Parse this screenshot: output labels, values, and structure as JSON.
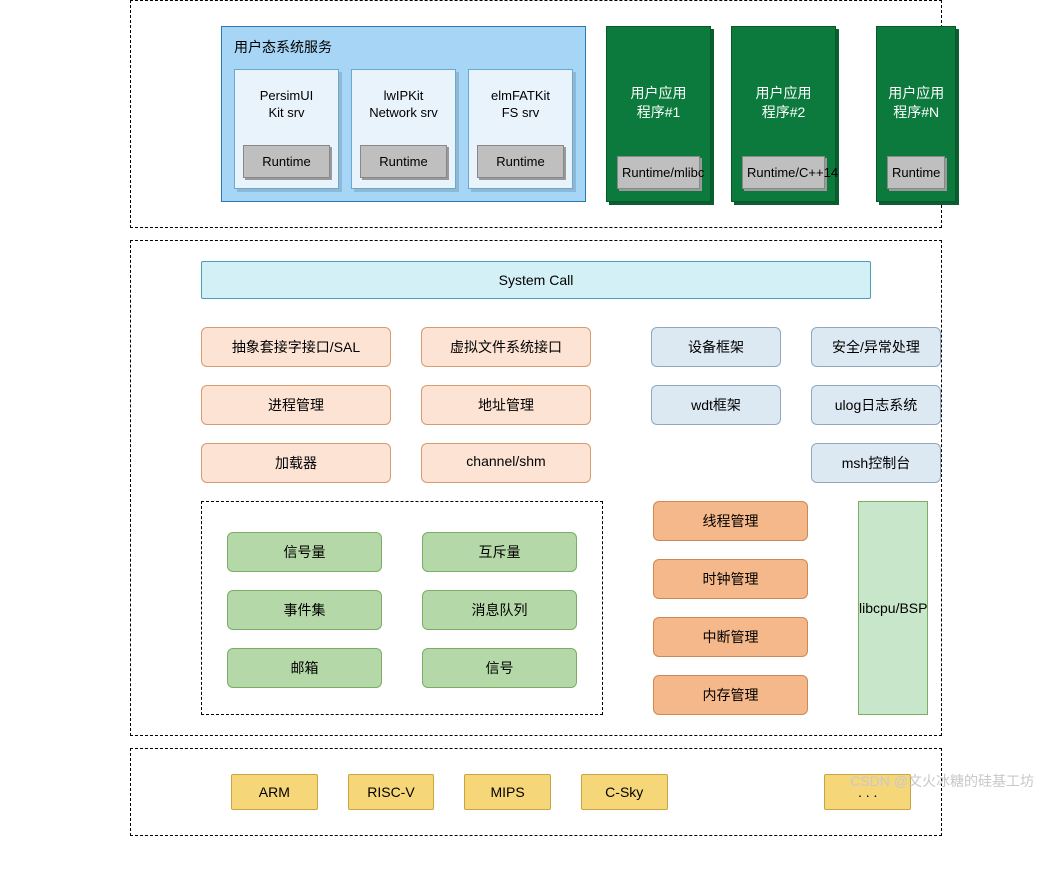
{
  "user_layer": {
    "services_title": "用户态系统服务",
    "services": [
      {
        "line1": "PersimUI",
        "line2": "Kit srv",
        "runtime": "Runtime"
      },
      {
        "line1": "lwIPKit",
        "line2": "Network srv",
        "runtime": "Runtime"
      },
      {
        "line1": "elmFATKit",
        "line2": "FS srv",
        "runtime": "Runtime"
      }
    ],
    "apps": [
      {
        "line1": "用户应用",
        "line2": "程序#1",
        "runtime": "Runtime/mlibc"
      },
      {
        "line1": "用户应用",
        "line2": "程序#2",
        "runtime": "Runtime/C++14"
      },
      {
        "line1": "用户应用",
        "line2": "程序#N",
        "runtime": "Runtime"
      }
    ]
  },
  "kernel_layer": {
    "syscall": "System Call",
    "row1": {
      "a": "抽象套接字接口/SAL",
      "b": "虚拟文件系统接口",
      "c": "设备框架",
      "d": "安全/异常处理"
    },
    "row2": {
      "a": "进程管理",
      "b": "地址管理",
      "c": "wdt框架",
      "d": "ulog日志系统"
    },
    "row3": {
      "a": "加载器",
      "b": "channel/shm",
      "d": "msh控制台"
    },
    "ipc": {
      "sem": "信号量",
      "mutex": "互斥量",
      "event": "事件集",
      "mq": "消息队列",
      "mailbox": "邮箱",
      "signal": "信号"
    },
    "sched": {
      "thread": "线程管理",
      "clock": "时钟管理",
      "irq": "中断管理",
      "mem": "内存管理"
    },
    "libcpu": "libcpu/BSP"
  },
  "arch_layer": {
    "arm": "ARM",
    "riscv": "RISC-V",
    "mips": "MIPS",
    "csky": "C-Sky",
    "more": ". . ."
  },
  "watermark": "CSDN @文火冰糖的硅基工坊",
  "colors": {
    "user_services_bg": "#a6d5f5",
    "srv_box_bg": "#e8f3fb",
    "runtime_bg": "#bfbfbf",
    "app_bg": "#0b7a3c",
    "syscall_bg": "#d4f0f7",
    "peach_bg": "#fce3d4",
    "lblue_bg": "#dce8f2",
    "green_bg": "#b5d8a8",
    "orange_bg": "#f5b88a",
    "libcpu_bg": "#c8e6c9",
    "yellow_bg": "#f5d77a"
  }
}
